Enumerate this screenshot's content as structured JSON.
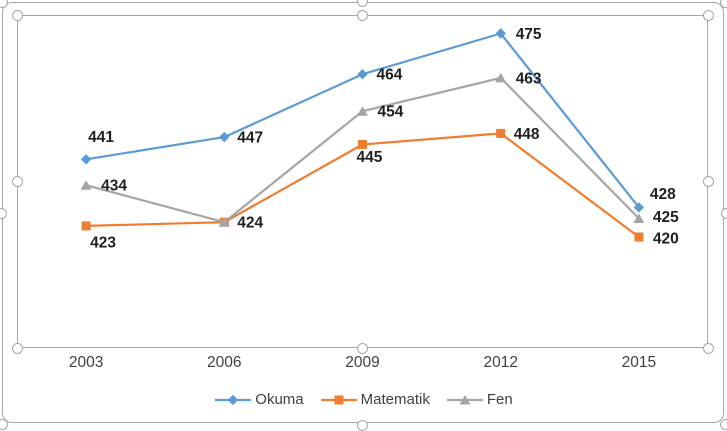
{
  "chart_data": {
    "type": "line",
    "title": "",
    "xlabel": "",
    "ylabel": "",
    "categories": [
      "2003",
      "2006",
      "2009",
      "2012",
      "2015"
    ],
    "series": [
      {
        "name": "Okuma",
        "color": "#5B9BD5",
        "marker": "diamond",
        "values": [
          441,
          447,
          464,
          475,
          428
        ],
        "labels": [
          "441",
          "447",
          "464",
          "475",
          "428"
        ],
        "label_offsets": [
          [
            2,
            -23
          ],
          [
            13,
            0
          ],
          [
            14,
            0
          ],
          [
            15,
            0
          ],
          [
            11,
            -14
          ]
        ]
      },
      {
        "name": "Matematik",
        "color": "#ED7D31",
        "marker": "square",
        "values": [
          423,
          424,
          445,
          448,
          420
        ],
        "labels": [
          "423",
          "",
          "445",
          "448",
          "420"
        ],
        "label_offsets": [
          [
            4,
            16
          ],
          [
            0,
            0
          ],
          [
            -6,
            12
          ],
          [
            13,
            0
          ],
          [
            14,
            1
          ]
        ]
      },
      {
        "name": "Fen",
        "color": "#A5A5A5",
        "marker": "triangle",
        "values": [
          434,
          424,
          454,
          463,
          425
        ],
        "labels": [
          "434",
          "424",
          "454",
          "463",
          "425"
        ],
        "label_offsets": [
          [
            15,
            0
          ],
          [
            13,
            0
          ],
          [
            15,
            0
          ],
          [
            15,
            0
          ],
          [
            14,
            -2
          ]
        ]
      }
    ],
    "ylim": [
      390,
      480
    ],
    "grid": false,
    "legend_position": "bottom",
    "axis_line_color": "#A6A6A6",
    "data_label_color": "#1F1F1F",
    "axis_text_color": "#404040"
  },
  "selection": {
    "border_color": "#A6A6A6",
    "handle_fill": "#FFFFFF"
  }
}
